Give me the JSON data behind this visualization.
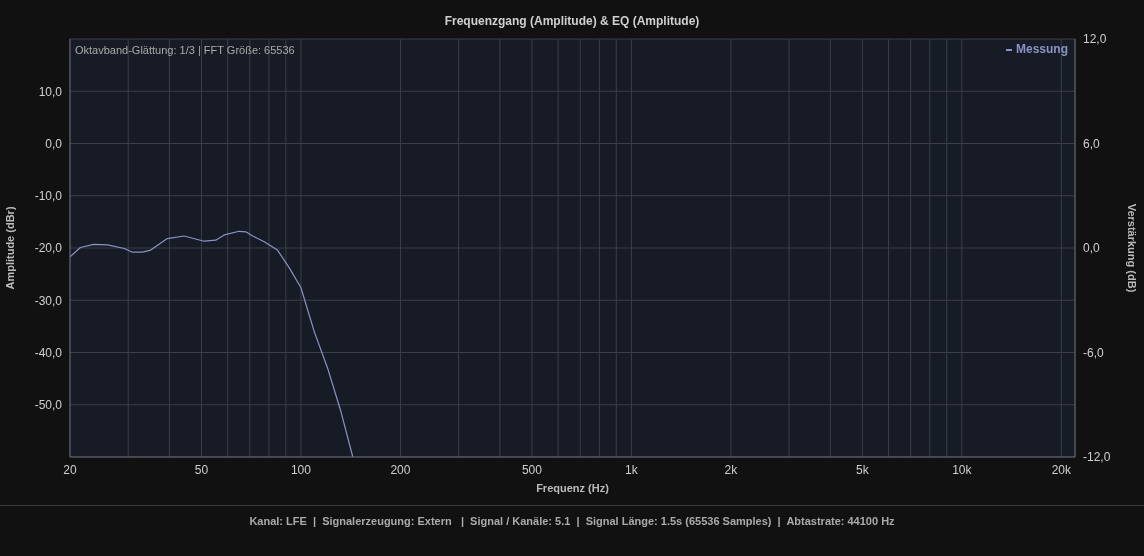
{
  "chart_data": {
    "type": "line",
    "title": "Frequenzgang (Amplitude) & EQ (Amplitude)",
    "xlabel": "Frequenz (Hz)",
    "ylabel": "Amplitude (dBr)",
    "y2label": "Verstärkung (dB)",
    "annotations": [
      "Oktavband-Glättung: 1/3 | FFT Größe: 65536",
      "Kanal: LFE  |  Signalerzeugung: Extern   |  Signal / Kanäle: 5.1  |  Signal Länge: 1.5s (65536 Samples)  |  Abtastrate: 44100 Hz"
    ],
    "log": "x",
    "grid": true,
    "legend": "top right",
    "marker": "none",
    "line_style": "solid",
    "xlim": [
      20,
      22000
    ],
    "xticks": [
      20,
      {
        "value": 30,
        "label": null
      },
      {
        "value": 40,
        "label": null
      },
      50,
      {
        "value": 60,
        "label": null
      },
      {
        "value": 70,
        "label": null
      },
      {
        "value": 80,
        "label": null
      },
      {
        "value": 90,
        "label": null
      },
      100,
      200,
      {
        "value": 300,
        "label": null
      },
      {
        "value": 400,
        "label": null
      },
      500,
      {
        "value": 600,
        "label": null
      },
      {
        "value": 700,
        "label": null
      },
      {
        "value": 800,
        "label": null
      },
      {
        "value": 900,
        "label": null
      },
      {
        "value": 1000,
        "label": "1k"
      },
      {
        "value": 2000,
        "label": "2k"
      },
      {
        "value": 3000,
        "label": null
      },
      {
        "value": 4000,
        "label": null
      },
      {
        "value": 5000,
        "label": "5k"
      },
      {
        "value": 6000,
        "label": null
      },
      {
        "value": 7000,
        "label": null
      },
      {
        "value": 8000,
        "label": null
      },
      {
        "value": 9000,
        "label": null
      },
      {
        "value": 10000,
        "label": "10k"
      },
      {
        "value": 20000,
        "label": "20k"
      }
    ],
    "ylim": [
      -60,
      20
    ],
    "yticks": [
      {
        "value": -50,
        "label": "-50,0"
      },
      {
        "value": -40,
        "label": "-40,0"
      },
      {
        "value": -30,
        "label": "-30,0"
      },
      {
        "value": -20,
        "label": "-20,0"
      },
      {
        "value": -10,
        "label": "-10,0"
      },
      {
        "value": 0,
        "label": "0,0"
      },
      {
        "value": 10,
        "label": "10,0"
      }
    ],
    "y2lim": [
      -12,
      12
    ],
    "y2ticks": [
      {
        "value": -12,
        "label": "-12,0"
      },
      {
        "value": -6,
        "label": "-6,0"
      },
      {
        "value": 0,
        "label": "0,0"
      },
      {
        "value": 6,
        "label": "6,0"
      },
      {
        "value": 12,
        "label": "12,0"
      }
    ],
    "series": [
      {
        "name": "Messung",
        "color": "#8a93c4",
        "x": [
          20,
          21.5,
          23.6,
          26,
          29.2,
          30.9,
          33.1,
          35.1,
          39.4,
          44.3,
          50.9,
          55.2,
          58.6,
          65,
          68.1,
          71.4,
          77.4,
          84.9,
          92.2,
          100,
          109.7,
          120.4,
          132.1,
          143.5
        ],
        "values": [
          -21.7,
          -19.9,
          -19.3,
          -19.4,
          -20.1,
          -20.8,
          -20.8,
          -20.4,
          -18.2,
          -17.7,
          -18.7,
          -18.5,
          -17.5,
          -16.8,
          -16.9,
          -17.7,
          -18.8,
          -20.4,
          -23.8,
          -27.6,
          -36,
          -43,
          -51.3,
          -60
        ]
      }
    ]
  }
}
